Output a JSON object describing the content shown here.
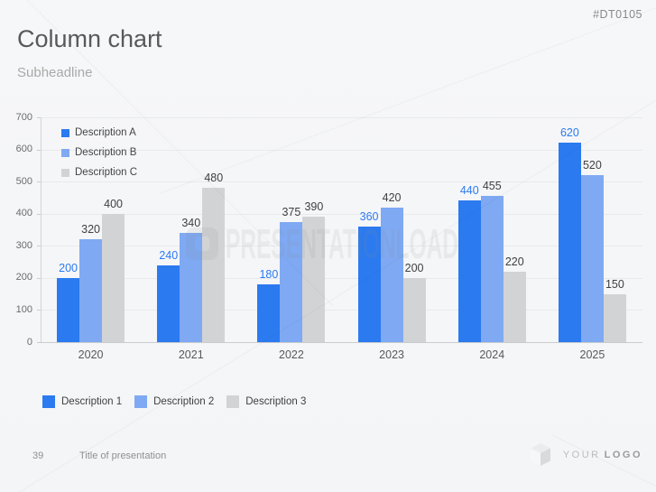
{
  "slide": {
    "id_code": "#DT0105",
    "title": "Column chart",
    "subtitle": "Subheadline",
    "watermark_text": "PRESENTATIONLOAD",
    "footer": {
      "page_number": "39",
      "presentation_title": "Title of presentation",
      "logo_word_1": "YOUR",
      "logo_word_2": "LOGO"
    }
  },
  "chart_data": {
    "type": "bar",
    "title": "",
    "xlabel": "",
    "ylabel": "",
    "categories": [
      "2020",
      "2021",
      "2022",
      "2023",
      "2024",
      "2025"
    ],
    "series": [
      {
        "name": "Description A",
        "color": "#2b7af0",
        "label_color": "#2b7af0",
        "values": [
          200,
          240,
          180,
          360,
          440,
          620
        ]
      },
      {
        "name": "Description B",
        "color": "#7fa9f2",
        "label_color": "#404040",
        "values": [
          320,
          340,
          375,
          420,
          455,
          520
        ]
      },
      {
        "name": "Description C",
        "color": "#d2d3d4",
        "label_color": "#404040",
        "values": [
          400,
          480,
          390,
          200,
          220,
          150
        ]
      }
    ],
    "ylim": [
      0,
      700
    ],
    "ytick_step": 100,
    "grid": true,
    "legend_inside_position": "top-left",
    "legend_bottom": [
      "Description 1",
      "Description 2",
      "Description 3"
    ],
    "axis_text_color": "#6b6b6b"
  }
}
